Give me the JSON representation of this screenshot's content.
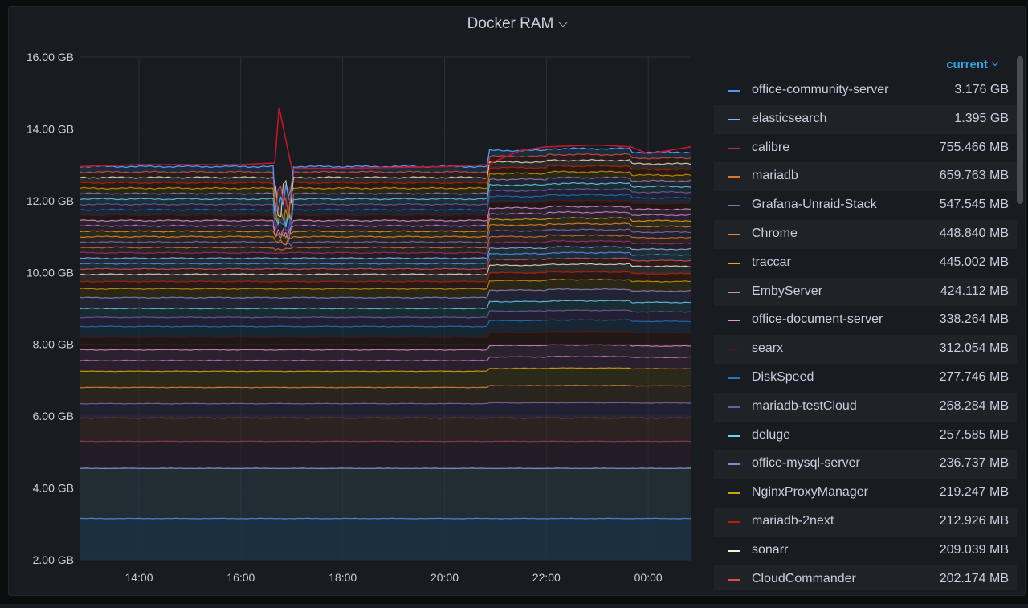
{
  "panel": {
    "title": "Docker RAM"
  },
  "legend": {
    "header": "current",
    "items": [
      {
        "name": "office-community-server",
        "value": "3.176 GB",
        "color": "#5794f2"
      },
      {
        "name": "elasticsearch",
        "value": "1.395 GB",
        "color": "#8ab8ff"
      },
      {
        "name": "calibre",
        "value": "755.466 MB",
        "color": "#a0326e"
      },
      {
        "name": "mariadb",
        "value": "659.763 MB",
        "color": "#e0752d"
      },
      {
        "name": "Grafana-Unraid-Stack",
        "value": "547.545 MB",
        "color": "#806eb7"
      },
      {
        "name": "Chrome",
        "value": "448.840 MB",
        "color": "#ef843c"
      },
      {
        "name": "traccar",
        "value": "445.002 MB",
        "color": "#e5ac0e"
      },
      {
        "name": "EmbyServer",
        "value": "424.112 MB",
        "color": "#d683ce"
      },
      {
        "name": "office-document-server",
        "value": "338.264 MB",
        "color": "#e794e0"
      },
      {
        "name": "searx",
        "value": "312.054 MB",
        "color": "#58140c"
      },
      {
        "name": "DiskSpeed",
        "value": "277.746 MB",
        "color": "#1f78c1"
      },
      {
        "name": "mariadb-testCloud",
        "value": "268.284 MB",
        "color": "#705da0"
      },
      {
        "name": "deluge",
        "value": "257.585 MB",
        "color": "#64d8f0"
      },
      {
        "name": "office-mysql-server",
        "value": "236.737 MB",
        "color": "#8f84c9"
      },
      {
        "name": "NginxProxyManager",
        "value": "219.247 MB",
        "color": "#cca300"
      },
      {
        "name": "mariadb-2next",
        "value": "212.926 MB",
        "color": "#bf1b00"
      },
      {
        "name": "sonarr",
        "value": "209.039 MB",
        "color": "#f5f0d8"
      },
      {
        "name": "CloudCommander",
        "value": "202.174 MB",
        "color": "#e24d42"
      }
    ]
  },
  "chart_data": {
    "type": "area",
    "title": "Docker RAM",
    "xlabel": "",
    "ylabel": "",
    "stacked": true,
    "unit": "GB",
    "grid": true,
    "legend_placement": "right",
    "x_ticks": [
      "14:00",
      "16:00",
      "18:00",
      "20:00",
      "22:00",
      "00:00"
    ],
    "y_ticks": [
      "2.00 GB",
      "4.00 GB",
      "6.00 GB",
      "8.00 GB",
      "10.00 GB",
      "12.00 GB",
      "14.00 GB",
      "16.00 GB"
    ],
    "ylim": [
      2,
      16
    ],
    "x_range": [
      "12:50",
      "00:50"
    ],
    "total_series": {
      "x": [
        "12:50",
        "14:00",
        "15:00",
        "16:00",
        "16:40",
        "16:45",
        "17:00",
        "18:00",
        "20:00",
        "20:50",
        "21:30",
        "22:00",
        "23:00",
        "23:40",
        "00:00",
        "00:50"
      ],
      "y": [
        12.95,
        13.0,
        13.0,
        13.0,
        13.05,
        14.6,
        12.9,
        12.9,
        12.95,
        13.0,
        13.4,
        13.5,
        13.55,
        13.5,
        13.3,
        13.5
      ]
    },
    "baseline_series": {
      "name": "office-community-server",
      "x": [
        "12:50",
        "16:00",
        "20:00",
        "23:00",
        "00:50"
      ],
      "y": [
        3.15,
        3.2,
        3.2,
        3.3,
        3.2
      ]
    },
    "band_boundaries": [
      3.15,
      4.55,
      5.3,
      5.95,
      6.35,
      6.8,
      7.25,
      7.55,
      7.85,
      8.2,
      8.5,
      8.75,
      9.0,
      9.3,
      9.55,
      9.75,
      9.95,
      10.1,
      10.25,
      10.4,
      10.55,
      10.7,
      10.85,
      11.0,
      11.15,
      11.3,
      11.45,
      11.6,
      11.75,
      11.9,
      12.05,
      12.2,
      12.35,
      12.5,
      12.65,
      12.8,
      12.95
    ],
    "series_names": [
      "office-community-server",
      "elasticsearch",
      "calibre",
      "mariadb",
      "Grafana-Unraid-Stack",
      "Chrome",
      "traccar",
      "EmbyServer",
      "office-document-server",
      "searx",
      "DiskSpeed",
      "mariadb-testCloud",
      "deluge",
      "office-mysql-server",
      "NginxProxyManager",
      "mariadb-2next",
      "sonarr",
      "CloudCommander"
    ]
  }
}
